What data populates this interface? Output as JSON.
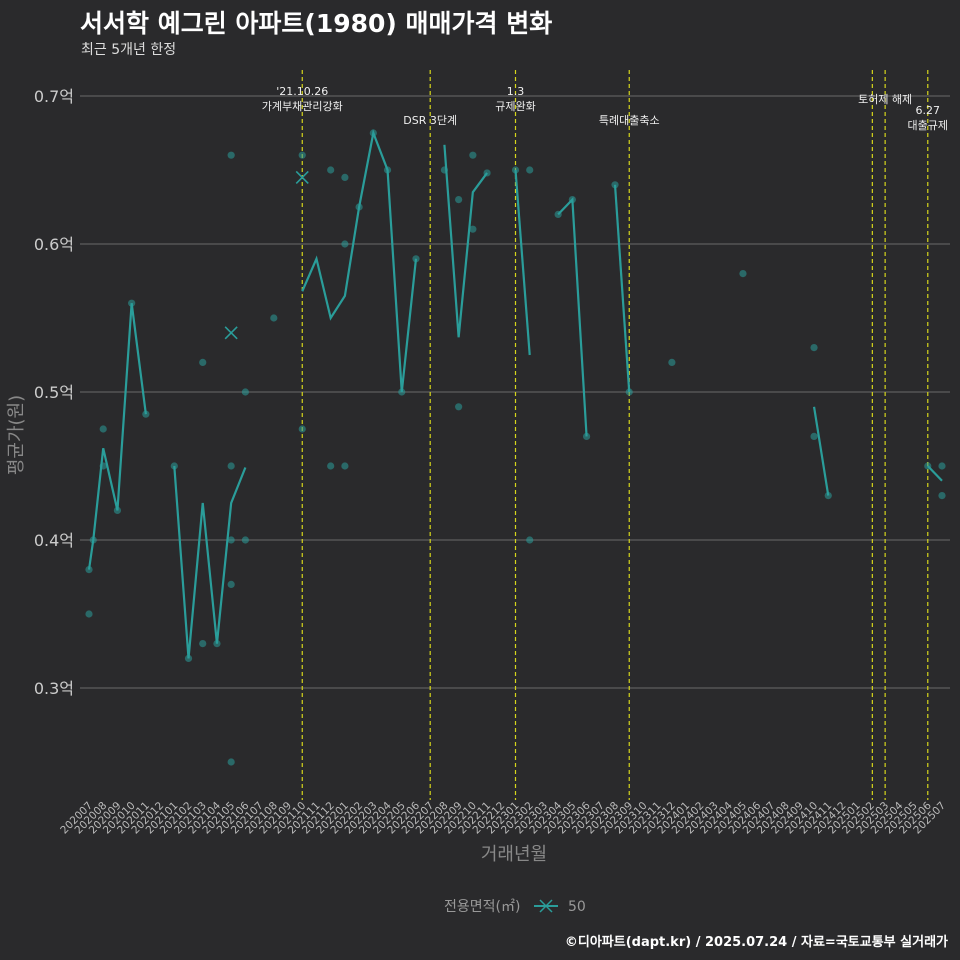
{
  "title": "서서학 예그린 아파트(1980) 매매가격 변화",
  "subtitle": "최근 5개년 한정",
  "footer": "©디아파트(dapt.kr) / 2025.07.24 / 자료=국토교통부 실거래가",
  "legend": {
    "title": "전용면적(㎡)",
    "label": "50",
    "color": "#2a9d9a"
  },
  "chart_data": {
    "type": "line",
    "title": "서서학 예그린 아파트(1980) 매매가격 변화",
    "xlabel": "거래년월",
    "ylabel": "평균가(원)",
    "ylim": [
      0.225,
      0.72
    ],
    "yticks": [
      0.3,
      0.4,
      0.5,
      0.6,
      0.7
    ],
    "ytick_labels": [
      "0.3억",
      "0.4억",
      "0.5억",
      "0.6억",
      "0.7억"
    ],
    "categories": [
      "202007",
      "202008",
      "202009",
      "202010",
      "202011",
      "202012",
      "202101",
      "202102",
      "202103",
      "202104",
      "202105",
      "202106",
      "202107",
      "202108",
      "202109",
      "202110",
      "202111",
      "202112",
      "202201",
      "202202",
      "202203",
      "202204",
      "202205",
      "202206",
      "202207",
      "202208",
      "202209",
      "202210",
      "202211",
      "202212",
      "202301",
      "202302",
      "202303",
      "202304",
      "202305",
      "202306",
      "202307",
      "202308",
      "202309",
      "202310",
      "202311",
      "202312",
      "202401",
      "202402",
      "202403",
      "202404",
      "202405",
      "202406",
      "202407",
      "202408",
      "202409",
      "202410",
      "202411",
      "202412",
      "202501",
      "202502",
      "202503",
      "202504",
      "202505",
      "202506",
      "202507"
    ],
    "series": [
      {
        "name": "50",
        "color": "#2a9d9a",
        "line": [
          [
            0,
            0.38
          ],
          [
            0.3,
            0.4
          ],
          [
            1,
            0.462
          ],
          [
            2,
            0.42
          ],
          [
            3,
            0.56
          ],
          [
            4,
            0.485
          ],
          null,
          [
            6,
            0.45
          ],
          [
            7,
            0.32
          ],
          [
            8,
            0.425
          ],
          [
            9,
            0.33
          ],
          [
            10,
            0.425
          ],
          [
            11,
            0.449
          ],
          null,
          [
            15,
            0.568
          ],
          [
            16,
            0.59
          ],
          [
            17,
            0.55
          ],
          [
            18,
            0.565
          ],
          [
            19,
            0.625
          ],
          [
            20,
            0.675
          ],
          [
            21,
            0.65
          ],
          [
            22,
            0.5
          ],
          [
            23,
            0.59
          ],
          null,
          [
            25,
            0.667
          ],
          [
            26,
            0.537
          ],
          [
            27,
            0.635
          ],
          [
            28,
            0.648
          ],
          null,
          [
            30,
            0.65
          ],
          [
            31,
            0.525
          ],
          null,
          [
            33,
            0.62
          ],
          [
            34,
            0.63
          ],
          [
            35,
            0.47
          ],
          null,
          [
            37,
            0.64
          ],
          [
            38,
            0.5
          ],
          null,
          [
            51,
            0.49
          ],
          [
            52,
            0.43
          ],
          null,
          [
            59,
            0.45
          ],
          [
            60,
            0.44
          ]
        ],
        "points": [
          [
            0,
            0.38
          ],
          [
            0,
            0.35
          ],
          [
            0.3,
            0.4
          ],
          [
            1,
            0.475
          ],
          [
            1,
            0.45
          ],
          [
            2,
            0.42
          ],
          [
            3,
            0.56
          ],
          [
            4,
            0.485
          ],
          [
            6,
            0.45
          ],
          [
            7,
            0.32
          ],
          [
            8,
            0.52
          ],
          [
            8,
            0.33
          ],
          [
            9,
            0.33
          ],
          [
            10,
            0.66
          ],
          [
            10,
            0.45
          ],
          [
            10,
            0.4
          ],
          [
            10,
            0.37
          ],
          [
            10,
            0.25
          ],
          [
            11,
            0.5
          ],
          [
            11,
            0.4
          ],
          [
            13,
            0.55
          ],
          [
            15,
            0.66
          ],
          [
            15,
            0.475
          ],
          [
            17,
            0.65
          ],
          [
            17,
            0.45
          ],
          [
            18,
            0.645
          ],
          [
            18,
            0.6
          ],
          [
            18,
            0.45
          ],
          [
            19,
            0.625
          ],
          [
            20,
            0.675
          ],
          [
            21,
            0.65
          ],
          [
            22,
            0.5
          ],
          [
            23,
            0.59
          ],
          [
            25,
            0.65
          ],
          [
            26,
            0.63
          ],
          [
            26,
            0.49
          ],
          [
            27,
            0.66
          ],
          [
            27,
            0.61
          ],
          [
            28,
            0.648
          ],
          [
            30,
            0.65
          ],
          [
            31,
            0.65
          ],
          [
            31,
            0.4
          ],
          [
            33,
            0.62
          ],
          [
            34,
            0.63
          ],
          [
            35,
            0.47
          ],
          [
            37,
            0.64
          ],
          [
            38,
            0.5
          ],
          [
            41,
            0.52
          ],
          [
            46,
            0.58
          ],
          [
            51,
            0.53
          ],
          [
            51,
            0.47
          ],
          [
            52,
            0.43
          ],
          [
            59,
            0.45
          ],
          [
            60,
            0.45
          ],
          [
            60,
            0.43
          ]
        ],
        "cancelled": [
          [
            15,
            0.645
          ],
          [
            10,
            0.54
          ]
        ]
      }
    ],
    "events": [
      {
        "x": 15,
        "lines": [
          "'21.10.26",
          "가계부채관리강화"
        ],
        "level": 0
      },
      {
        "x": 24,
        "lines": [
          "DSR 3단계"
        ],
        "level": 2
      },
      {
        "x": 30,
        "lines": [
          "1.3",
          "규제완화"
        ],
        "level": 0
      },
      {
        "x": 38,
        "lines": [
          "특례대출축소"
        ],
        "level": 2
      },
      {
        "x": 55.1,
        "lines": [],
        "level": 0
      },
      {
        "x": 56,
        "lines": [
          "토허제 해제"
        ],
        "level": 1
      },
      {
        "x": 59,
        "lines": [
          "6.27",
          "대출규제"
        ],
        "level": 1.3
      }
    ]
  }
}
